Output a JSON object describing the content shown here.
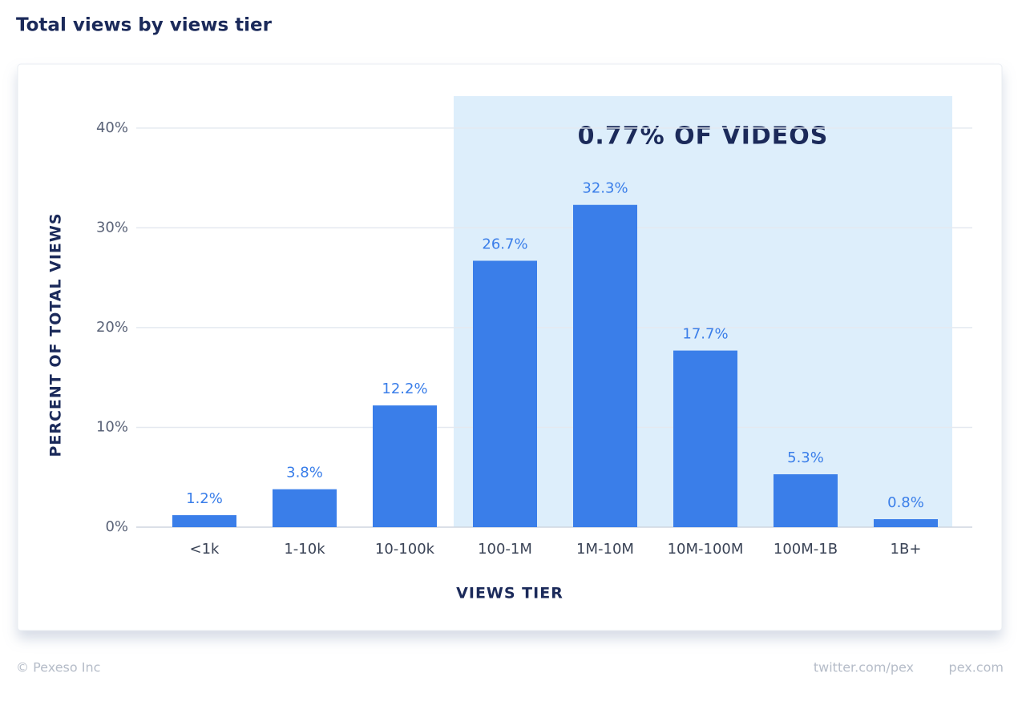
{
  "chart_data": {
    "type": "bar",
    "title": "Total views by views tier",
    "annotation": "0.77% OF VIDEOS",
    "x_label": "VIEWS TIER",
    "y_label": "PERCENT OF TOTAL VIEWS",
    "categories": [
      "<1k",
      "1-10k",
      "10-100k",
      "100-1M",
      "1M-10M",
      "10M-100M",
      "100M-1B",
      "1B+"
    ],
    "values": [
      1.2,
      3.8,
      12.2,
      26.7,
      32.3,
      17.7,
      5.3,
      0.8
    ],
    "value_labels": [
      "1.2%",
      "3.8%",
      "12.2%",
      "26.7%",
      "32.3%",
      "17.7%",
      "5.3%",
      "0.8%"
    ],
    "color": "#3a7ee9",
    "ylim": [
      0,
      43.2
    ],
    "yticks": [
      {
        "value": 0,
        "label": "0%"
      },
      {
        "value": 10,
        "label": "10%"
      },
      {
        "value": 20,
        "label": "20%"
      },
      {
        "value": 30,
        "label": "30%"
      },
      {
        "value": 40,
        "label": "40%"
      }
    ],
    "grid": true
  },
  "footer": {
    "left": "© Pexeso Inc",
    "right": [
      "twitter.com/pex",
      "pex.com"
    ]
  }
}
